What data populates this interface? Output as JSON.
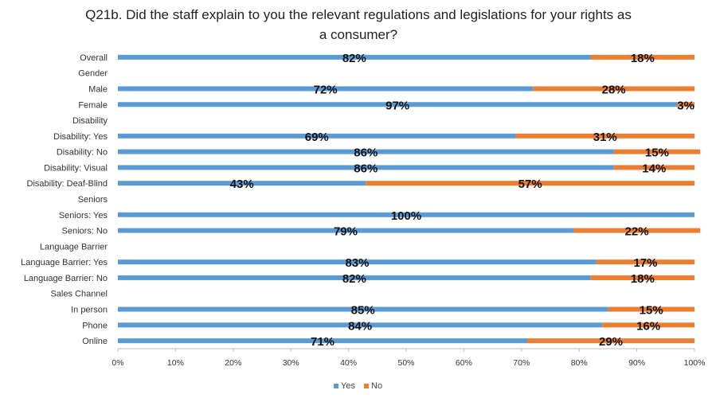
{
  "chart_data": {
    "type": "bar",
    "orientation": "horizontal",
    "stacked": true,
    "title": "Q21b. Did the staff explain to you the relevant regulations and legislations for your rights as a consumer?",
    "title_lines": [
      "Q21b. Did the staff explain to you the relevant regulations and legislations for your rights as",
      "a consumer?"
    ],
    "categories": [
      "Overall",
      "Gender",
      "Male",
      "Female",
      "Disability",
      "Disability: Yes",
      "Disability: No",
      "Disability: Visual",
      "Disability: Deaf-Blind",
      "Seniors",
      "Seniors: Yes",
      "Seniors: No",
      "Language Barrier",
      "Language Barrier: Yes",
      "Language Barrier: No",
      "Sales Channel",
      "In person",
      "Phone",
      "Online"
    ],
    "series": [
      {
        "name": "Yes",
        "color": "#5b9bd5",
        "values": [
          82,
          null,
          72,
          97,
          null,
          69,
          86,
          86,
          43,
          null,
          100,
          79,
          null,
          83,
          82,
          null,
          85,
          84,
          71
        ],
        "labels": [
          "82%",
          "",
          "72%",
          "97%",
          "",
          "69%",
          "86%",
          "86%",
          "43%",
          "",
          "100%",
          "79%",
          "",
          "83%",
          "82%",
          "",
          "85%",
          "84%",
          "71%"
        ]
      },
      {
        "name": "No",
        "color": "#ed7d31",
        "values": [
          18,
          null,
          28,
          3,
          null,
          31,
          15,
          14,
          57,
          null,
          0,
          22,
          null,
          17,
          18,
          null,
          15,
          16,
          29
        ],
        "labels": [
          "18%",
          "",
          "28%",
          "3%",
          "",
          "31%",
          "15%",
          "14%",
          "57%",
          "",
          "",
          "22%",
          "",
          "17%",
          "18%",
          "",
          "15%",
          "16%",
          "29%"
        ]
      }
    ],
    "x_ticks": [
      "0%",
      "10%",
      "20%",
      "30%",
      "40%",
      "50%",
      "60%",
      "70%",
      "80%",
      "90%",
      "100%"
    ],
    "xlim": [
      0,
      100
    ],
    "grid": false,
    "legend_position": "bottom"
  }
}
